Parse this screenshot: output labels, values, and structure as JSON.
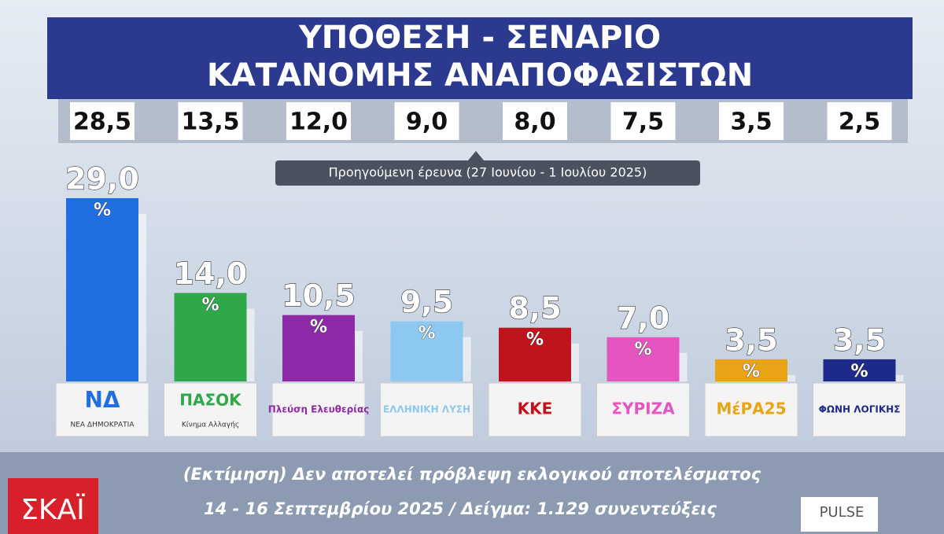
{
  "chart_data": {
    "type": "bar",
    "title": [
      "ΥΠΟΘΕΣΗ - ΣΕΝΑΡΙΟ",
      "ΚΑΤΑΝΟΜΗΣ ΑΝΑΠΟΦΑΣΙΣΤΩΝ"
    ],
    "categories": [
      "ΝΔ",
      "ΠΑΣΟΚ",
      "Πλεύση Ελευθερίας",
      "ΕΛΛΗΝΙΚΗ ΛΥΣΗ",
      "ΚΚΕ",
      "ΣΥΡΙΖΑ",
      "ΜέΡΑ25",
      "ΦΩΝΗ ΛΟΓΙΚΗΣ"
    ],
    "category_subtitles": [
      "ΝΕΑ ΔΗΜΟΚΡΑΤΙΑ",
      "Κίνημα Αλλαγής",
      null,
      null,
      null,
      null,
      null,
      null
    ],
    "values": [
      29.0,
      14.0,
      10.5,
      9.5,
      8.5,
      7.0,
      3.5,
      3.5
    ],
    "value_labels": [
      "29,0",
      "14,0",
      "10,5",
      "9,5",
      "8,5",
      "7,0",
      "3,5",
      "3,5"
    ],
    "unit": "%",
    "colors": [
      "#1f6fe0",
      "#2fa84a",
      "#8e2aa8",
      "#8cc8ef",
      "#c0141c",
      "#e455c0",
      "#e8a415",
      "#1d2a8a"
    ],
    "previous": {
      "label": "Προηγούμενη έρευνα (27 Ιουνίου - 1 Ιουλίου 2025)",
      "values": [
        28.5,
        13.5,
        12.0,
        9.0,
        8.0,
        7.5,
        3.5,
        2.5
      ],
      "value_labels": [
        "28,5",
        "13,5",
        "12,0",
        "9,0",
        "8,0",
        "7,5",
        "3,5",
        "2,5"
      ]
    },
    "note": "(Εκτίμηση) Δεν αποτελεί πρόβλεψη εκλογικού αποτελέσματος",
    "source": "14 - 16 Σεπτεμβρίου 2025 / Δείγμα: 1.129 συνεντεύξεις",
    "broadcaster": "ΣΚΑΪ",
    "pollster": "PULSE"
  }
}
